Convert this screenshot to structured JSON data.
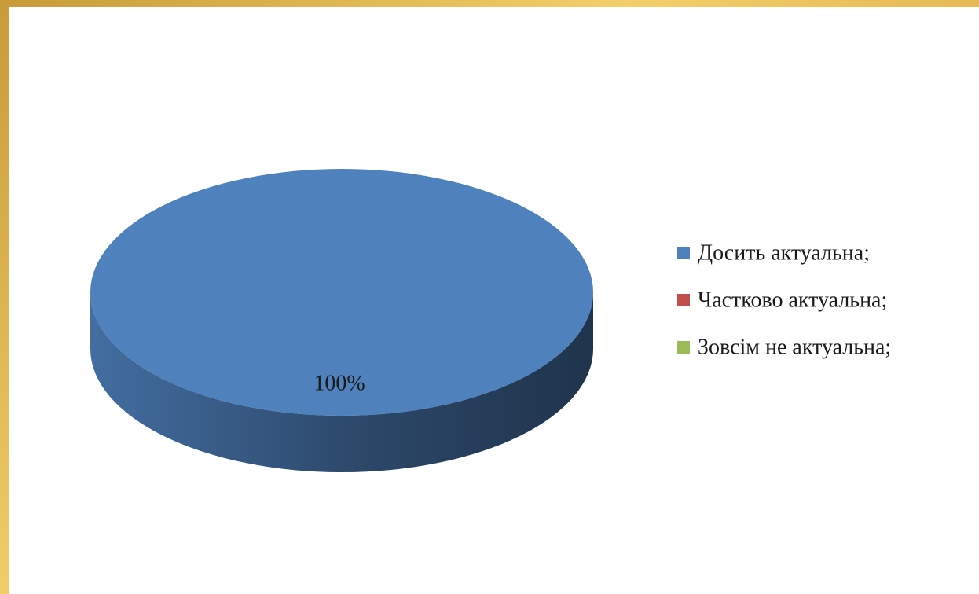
{
  "chart_data": {
    "type": "pie",
    "categories": [
      "Досить актуальна;",
      "Частково актуальна;",
      "Зовсім не актуальна;"
    ],
    "values": [
      100,
      0,
      0
    ],
    "value_labels": [
      "100%",
      null,
      null
    ],
    "colors": [
      "#4f81bd",
      "#c0504d",
      "#9bbb59"
    ],
    "legend": "right"
  }
}
